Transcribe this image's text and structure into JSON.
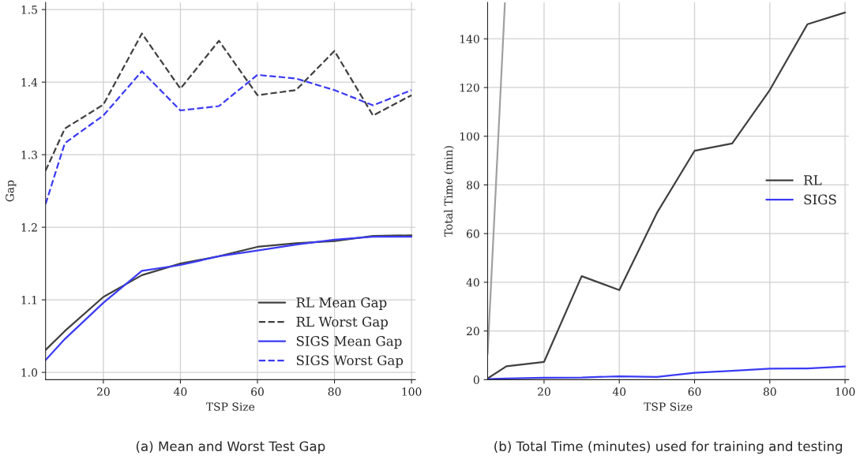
{
  "chart_data": [
    {
      "type": "line",
      "title": "(a) Mean and Worst Test Gap",
      "xlabel": "TSP Size",
      "ylabel": "Gap",
      "x": [
        5,
        10,
        20,
        30,
        40,
        50,
        60,
        70,
        80,
        90,
        100
      ],
      "xlim": [
        5,
        101
      ],
      "xticks": [
        20,
        40,
        60,
        80,
        100
      ],
      "ylim": [
        0.99,
        1.51
      ],
      "yticks": [
        {
          "value": 1.0,
          "label": "1.0"
        },
        {
          "value": 1.1,
          "label": "1.1"
        },
        {
          "value": 1.2,
          "label": "1.2"
        },
        {
          "value": 1.3,
          "label": "1.3"
        },
        {
          "value": 1.4,
          "label": "1.4"
        },
        {
          "value": 1.5,
          "label": "1.5"
        }
      ],
      "grid": true,
      "legend": "bottom right",
      "series": [
        {
          "name": "RL Mean Gap",
          "color": "#404040",
          "line_style": "solid",
          "values": [
            1.031,
            1.057,
            1.104,
            1.134,
            1.15,
            1.16,
            1.173,
            1.178,
            1.181,
            1.188,
            1.189
          ]
        },
        {
          "name": "RL Worst Gap",
          "color": "#404040",
          "line_style": "dashed",
          "values": [
            1.278,
            1.336,
            1.369,
            1.467,
            1.391,
            1.457,
            1.382,
            1.389,
            1.443,
            1.354,
            1.382
          ]
        },
        {
          "name": "SIGS Mean Gap",
          "color": "#3b3bf5",
          "line_style": "solid",
          "values": [
            1.017,
            1.046,
            1.096,
            1.14,
            1.148,
            1.16,
            1.168,
            1.176,
            1.183,
            1.187,
            1.187
          ]
        },
        {
          "name": "SIGS Worst Gap",
          "color": "#3b3bf5",
          "line_style": "dashed",
          "values": [
            1.232,
            1.316,
            1.354,
            1.415,
            1.361,
            1.367,
            1.41,
            1.405,
            1.389,
            1.368,
            1.389
          ]
        }
      ]
    },
    {
      "type": "line",
      "title": "(b) Total Time (minutes) used for training and testing",
      "xlabel": "TSP Size",
      "ylabel": "Total Time (min)",
      "x": [
        5,
        10,
        20,
        30,
        40,
        50,
        60,
        70,
        80,
        90,
        100
      ],
      "xlim": [
        5,
        101
      ],
      "xticks": [
        20,
        40,
        60,
        80,
        100
      ],
      "ylim": [
        0,
        155
      ],
      "yticks": [
        0,
        20,
        40,
        60,
        80,
        100,
        120,
        140
      ],
      "grid": true,
      "legend": "right",
      "series": [
        {
          "color": "#a0a0a0",
          "line_style": "solid",
          "x": [
            5,
            9.6
          ],
          "values": [
            10.5,
            155
          ]
        },
        {
          "name": "RL",
          "color": "#404040",
          "line_style": "solid",
          "values": [
            0.5,
            5.5,
            7.3,
            42.5,
            36.8,
            68.5,
            94,
            97,
            119,
            146,
            150.8
          ]
        },
        {
          "name": "SIGS",
          "color": "#3b3bf5",
          "line_style": "solid",
          "values": [
            0.2,
            0.5,
            0.8,
            0.9,
            1.4,
            1.1,
            2.8,
            3.6,
            4.5,
            4.6,
            5.4
          ]
        }
      ]
    }
  ]
}
